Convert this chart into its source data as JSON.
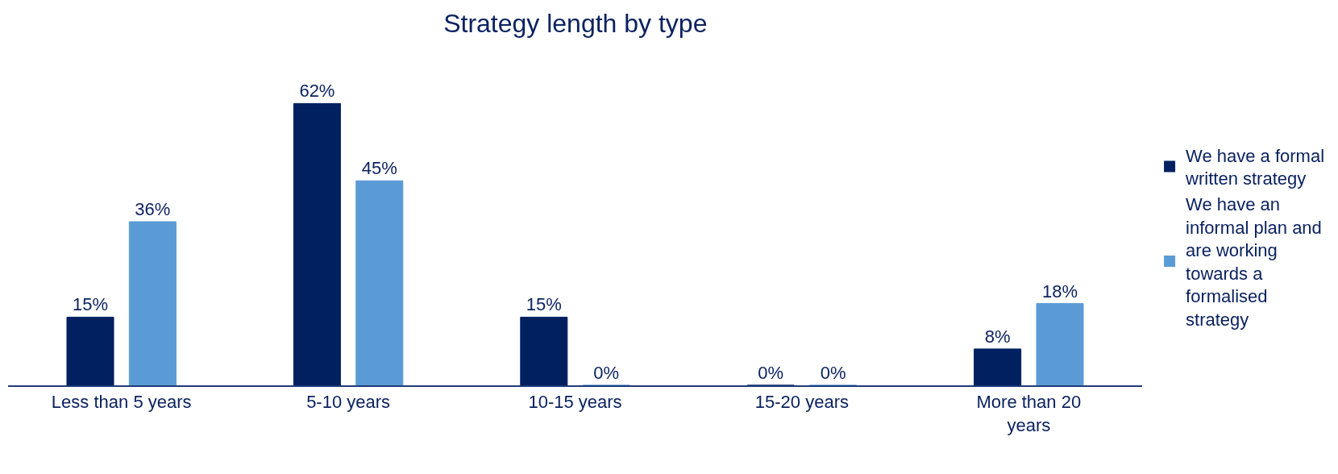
{
  "chart_data": {
    "type": "bar",
    "title": "Strategy length by type",
    "categories": [
      "Less than 5 years",
      "5-10 years",
      "10-15 years",
      "15-20 years",
      "More than 20 years"
    ],
    "legend": "right",
    "series": [
      {
        "name": "We have a formal written strategy",
        "color": "#002060",
        "values": [
          15,
          62,
          15,
          0,
          8
        ],
        "value_labels": [
          "15%",
          "62%",
          "15%",
          "0%",
          "8%"
        ]
      },
      {
        "name": "We have an informal plan and are working towards a formalised strategy",
        "color": "#5b9bd5",
        "values": [
          36,
          45,
          0,
          0,
          18
        ],
        "value_labels": [
          "36%",
          "45%",
          "0%",
          "0%",
          "18%"
        ]
      }
    ]
  }
}
